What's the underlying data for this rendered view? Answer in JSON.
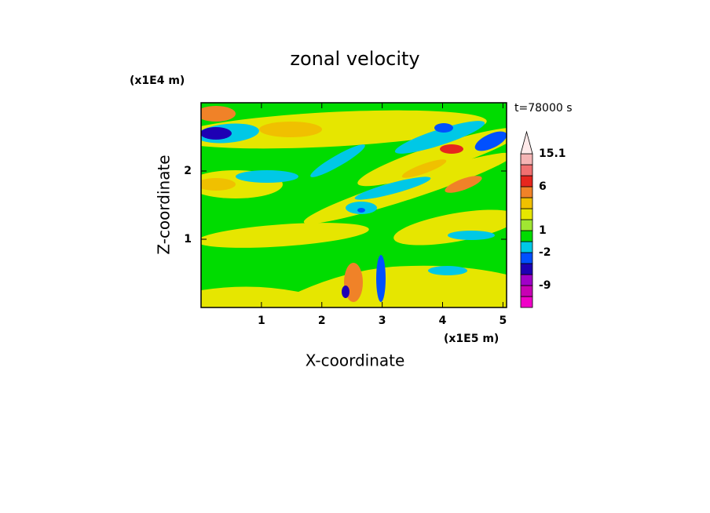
{
  "chart_data": {
    "type": "contour",
    "title": "zonal velocity",
    "x_label": "X-coordinate",
    "y_label": "Z-coordinate",
    "x_unit": "(x1E5 m)",
    "y_unit": "(x1E4 m)",
    "time_label": "t=78000 s",
    "xlim": [
      0,
      5.06
    ],
    "ylim": [
      0,
      3
    ],
    "xticks": [
      1,
      2,
      3,
      4,
      5
    ],
    "yticks": [
      1,
      2
    ],
    "colorbar": {
      "levels": [
        -15,
        -12,
        -9,
        -6,
        -4,
        -2,
        0,
        1,
        2,
        3,
        4,
        6,
        9,
        12,
        15.1
      ],
      "colors": [
        "#f000c8",
        "#c800b4",
        "#a000c8",
        "#1e00b4",
        "#0050ff",
        "#00c8e6",
        "#00dc00",
        "#a0e632",
        "#e6e600",
        "#f0c000",
        "#f08228",
        "#e6261e",
        "#f07070",
        "#f5b4b4"
      ],
      "extend_color": "#ffeaea",
      "ticks": [
        -9,
        -2,
        1,
        6,
        15.1
      ]
    }
  }
}
